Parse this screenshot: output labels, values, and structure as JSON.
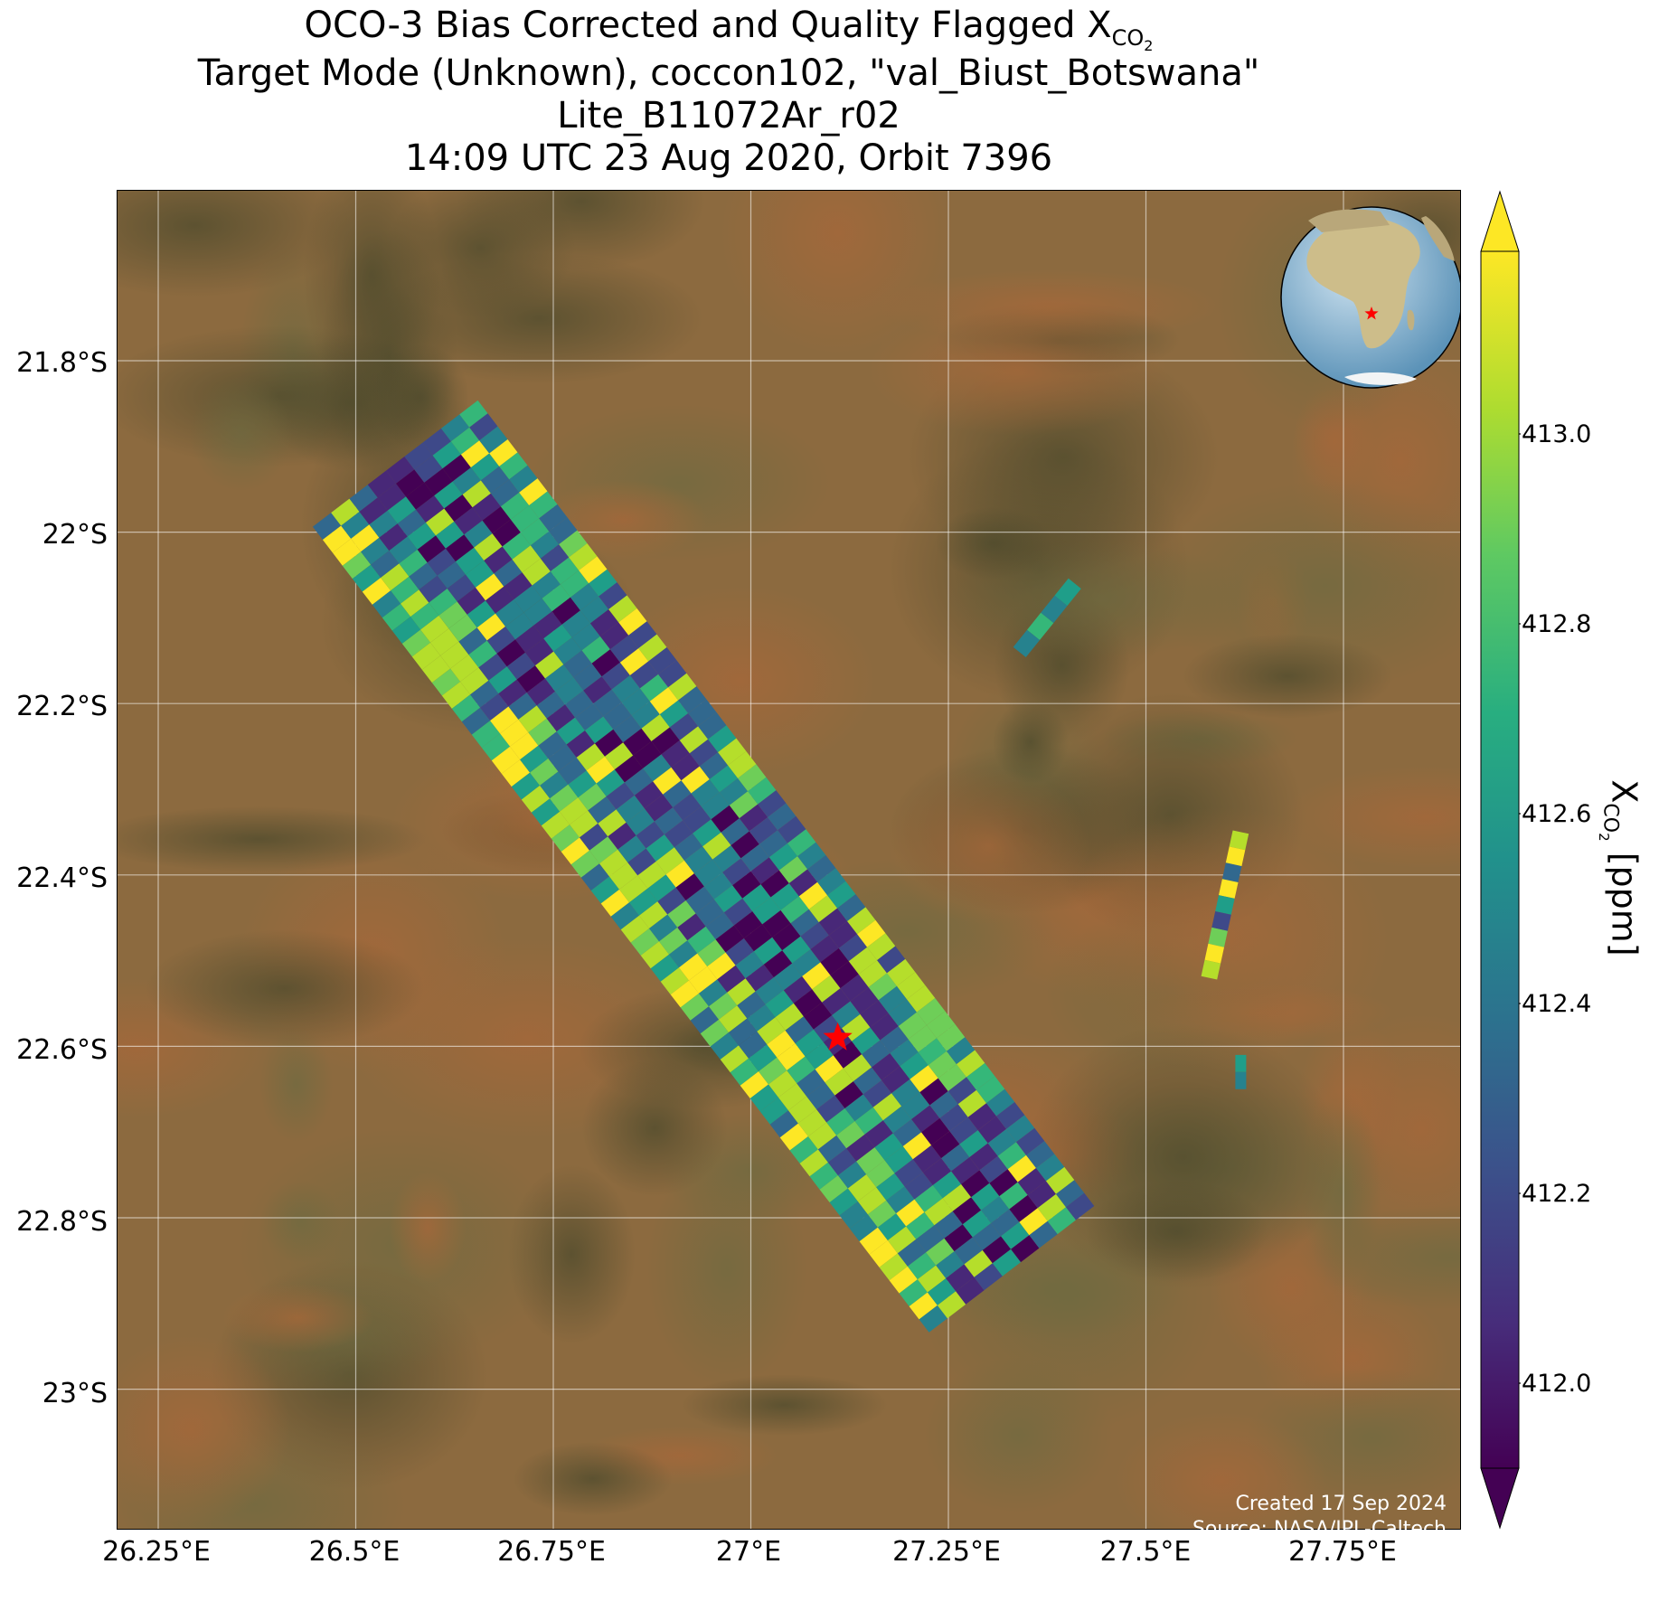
{
  "title": {
    "line1_prefix": "OCO-3 Bias Corrected and Quality Flagged X",
    "line1_subscript": "CO",
    "line1_subscript2": "2",
    "line2": "Target Mode (Unknown), coccon102, \"val_Biust_Botswana\"",
    "line3": "Lite_B11072Ar_r02",
    "line4": "14:09 UTC 23 Aug 2020, Orbit 7396"
  },
  "axes": {
    "y_ticks": [
      "21.8°S",
      "22°S",
      "22.2°S",
      "22.4°S",
      "22.6°S",
      "22.8°S",
      "23°S"
    ],
    "x_ticks": [
      "26.25°E",
      "26.5°E",
      "26.75°E",
      "27°E",
      "27.25°E",
      "27.5°E",
      "27.75°E"
    ]
  },
  "colorbar": {
    "label_prefix": "X",
    "label_sub": "CO",
    "label_sub2": "2",
    "label_suffix": " [ppm]",
    "ticks": [
      "413.0",
      "412.8",
      "412.6",
      "412.4",
      "412.2",
      "412.0"
    ],
    "range": [
      411.87,
      413.15
    ],
    "colormap": "viridis",
    "extend": "both"
  },
  "credit": {
    "line1": "Created 17 Sep 2024",
    "line2": "Source: NASA/JPL-Caltech"
  },
  "target_site": {
    "name": "val_Biust_Botswana",
    "lon": 27.11,
    "lat": -22.59,
    "marker": "red-star"
  },
  "chart_data": {
    "type": "map",
    "extent": {
      "lon": [
        26.2,
        27.9
      ],
      "lat": [
        -23.2,
        -21.6
      ]
    },
    "basemap": "satellite imagery (arid savanna, Botswana)",
    "inset": "orthographic globe centered on southern Africa with red star at site",
    "swaths": [
      {
        "name": "main swath",
        "from": [
          26.55,
          -21.95
        ],
        "to": [
          27.35,
          -22.85
        ],
        "values": "mixed 411.9–413.1"
      },
      {
        "name": "small swath 1",
        "from": [
          27.38,
          -22.08
        ],
        "to": [
          27.36,
          -22.13
        ],
        "values": "412.5–412.7"
      },
      {
        "name": "small swath 2",
        "from": [
          27.61,
          -22.38
        ],
        "to": [
          27.6,
          -22.48
        ],
        "values": "412.3–413.1"
      },
      {
        "name": "small swath 3",
        "from": [
          27.61,
          -22.62
        ],
        "to": [
          27.61,
          -22.64
        ],
        "values": "412.6"
      }
    ]
  }
}
